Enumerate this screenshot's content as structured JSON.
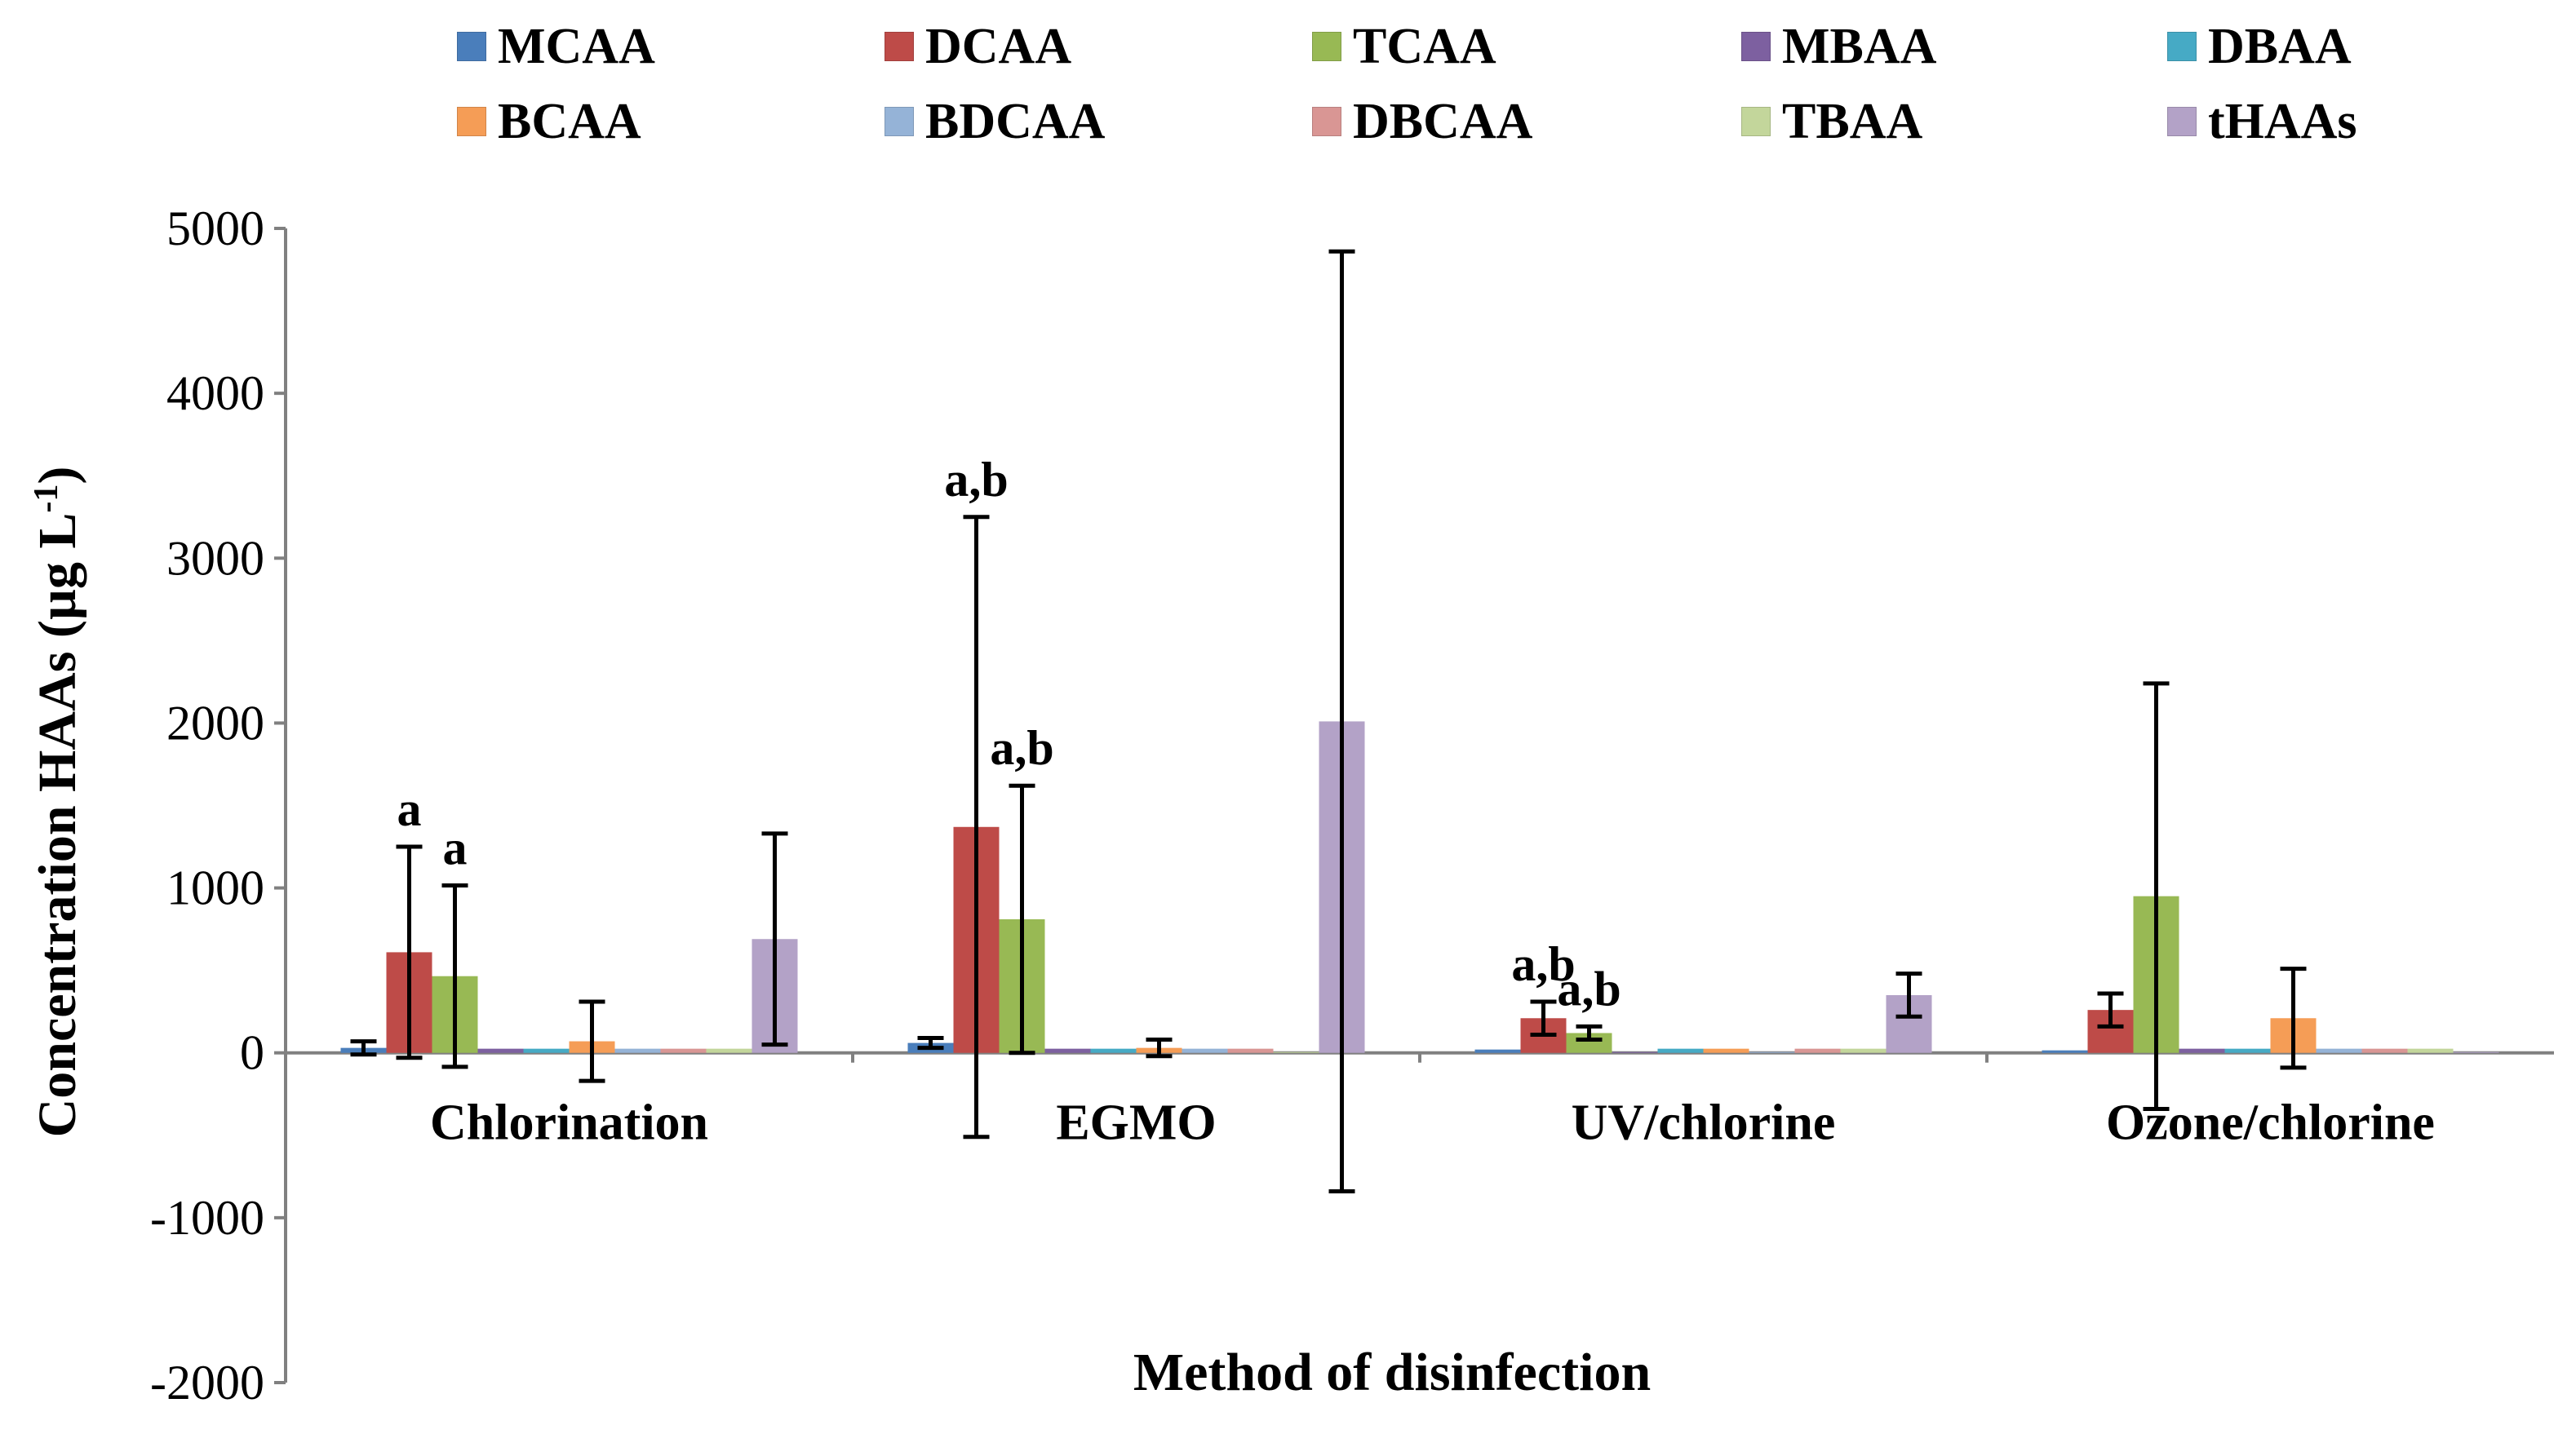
{
  "chart_data": {
    "type": "bar",
    "title": "",
    "xlabel": "Method of disinfection",
    "ylabel": "Concentration HAAs (µg L",
    "ylabel_sup": "-1",
    "ylabel_close": ")",
    "ylim": [
      -2000,
      5000
    ],
    "yticks": [
      -2000,
      -1000,
      0,
      1000,
      2000,
      3000,
      4000,
      5000
    ],
    "yticks_labels": [
      "-2000",
      "-1000",
      "0",
      "1000",
      "2000",
      "3000",
      "4000",
      "5000"
    ],
    "grid": false,
    "legend_position": "top",
    "categories": [
      "Chlorination",
      "EGMO",
      "UV/chlorine",
      "Ozone/chlorine"
    ],
    "series": [
      {
        "name": "MCAA",
        "color": "#4A7EBB",
        "values": [
          30,
          60,
          20,
          15
        ],
        "errors": [
          40,
          30,
          null,
          null
        ]
      },
      {
        "name": "DCAA",
        "color": "#BE4B48",
        "values": [
          610,
          1370,
          210,
          260
        ],
        "errors": [
          640,
          1880,
          100,
          100
        ]
      },
      {
        "name": "TCAA",
        "color": "#98B954",
        "values": [
          465,
          810,
          120,
          950
        ],
        "errors": [
          550,
          810,
          40,
          1290
        ]
      },
      {
        "name": "MBAA",
        "color": "#7D60A0",
        "values": [
          25,
          25,
          5,
          25
        ],
        "errors": [
          null,
          null,
          null,
          null
        ]
      },
      {
        "name": "DBAA",
        "color": "#46AAC5",
        "values": [
          25,
          25,
          25,
          25
        ],
        "errors": [
          null,
          null,
          null,
          null
        ]
      },
      {
        "name": "BCAA",
        "color": "#F59D56",
        "values": [
          70,
          30,
          25,
          210
        ],
        "errors": [
          240,
          50,
          null,
          300
        ]
      },
      {
        "name": "BDCAA",
        "color": "#95B3D7",
        "values": [
          25,
          25,
          5,
          25
        ],
        "errors": [
          null,
          null,
          null,
          null
        ]
      },
      {
        "name": "DBCAA",
        "color": "#D99694",
        "values": [
          25,
          25,
          25,
          25
        ],
        "errors": [
          null,
          null,
          null,
          null
        ]
      },
      {
        "name": "TBAA",
        "color": "#C3D69B",
        "values": [
          25,
          5,
          25,
          25
        ],
        "errors": [
          null,
          null,
          null,
          null
        ]
      },
      {
        "name": "tHAAs",
        "color": "#B3A2C7",
        "values": [
          690,
          2010,
          350,
          5
        ],
        "errors": [
          640,
          2850,
          130,
          null
        ]
      }
    ],
    "annotations": [
      {
        "text": "a",
        "category": "Chlorination",
        "series": "DCAA"
      },
      {
        "text": "a",
        "category": "Chlorination",
        "series": "TCAA"
      },
      {
        "text": "a,b",
        "category": "EGMO",
        "series": "DCAA"
      },
      {
        "text": "a,b",
        "category": "EGMO",
        "series": "TCAA"
      },
      {
        "text": "a,b",
        "category": "UV/chlorine",
        "series": "DCAA"
      },
      {
        "text": "a,b",
        "category": "UV/chlorine",
        "series": "TCAA"
      }
    ]
  }
}
